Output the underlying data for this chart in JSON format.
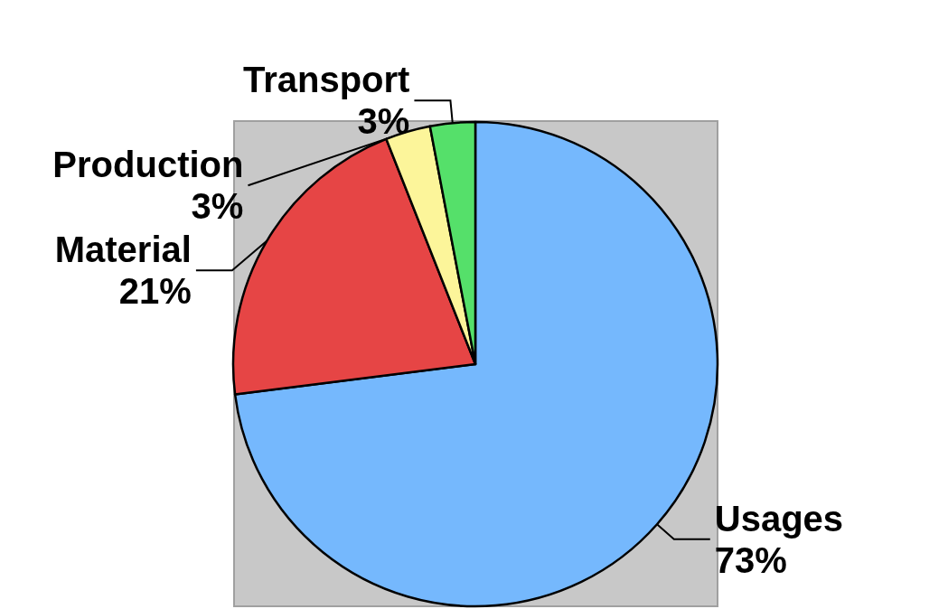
{
  "chart_data": {
    "type": "pie",
    "categories": [
      "Usages",
      "Material",
      "Production",
      "Transport"
    ],
    "values": [
      73,
      21,
      3,
      3
    ],
    "value_labels": [
      "73%",
      "21%",
      "3%",
      "3%"
    ],
    "colors": [
      "#75b8fd",
      "#e64545",
      "#fcf59a",
      "#55e06a"
    ],
    "legend": false
  }
}
